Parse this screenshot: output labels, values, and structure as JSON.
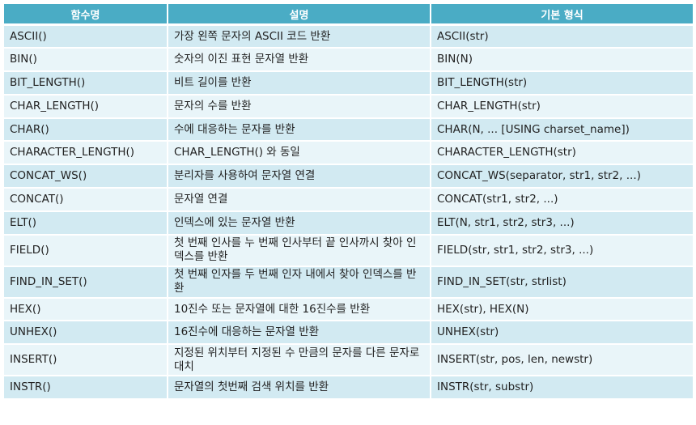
{
  "headers": [
    "함수명",
    "설명",
    "기본 형식"
  ],
  "rows": [
    {
      "name": "ASCII()",
      "description": "가장 왼쪽 문자의 ASCII 코드 반환",
      "syntax": "ASCII(str)"
    },
    {
      "name": "BIN()",
      "description": "숫자의 이진 표현 문자열 반환",
      "syntax": "BIN(N)"
    },
    {
      "name": "BIT_LENGTH()",
      "description": "비트 길이를 반환",
      "syntax": "BIT_LENGTH(str)"
    },
    {
      "name": "CHAR_LENGTH()",
      "description": "문자의 수를 반환",
      "syntax": "CHAR_LENGTH(str)"
    },
    {
      "name": "CHAR()",
      "description": "수에 대응하는 문자를 반환",
      "syntax": "CHAR(N, ... [USING charset_name])"
    },
    {
      "name": "CHARACTER_LENGTH()",
      "description": "CHAR_LENGTH() 와 동일",
      "syntax": "CHARACTER_LENGTH(str)"
    },
    {
      "name": "CONCAT_WS()",
      "description": "분리자를 사용하여 문자열 연결",
      "syntax": "CONCAT_WS(separator, str1, str2, ...)"
    },
    {
      "name": "CONCAT()",
      "description": "문자열 연결",
      "syntax": "CONCAT(str1, str2, ...)"
    },
    {
      "name": "ELT()",
      "description": "인덱스에 있는 문자열 반환",
      "syntax": "ELT(N, str1, str2, str3, ...)"
    },
    {
      "name": "FIELD()",
      "description": "첫 번째 인사를 누 번째 인사부터 끝 인사까시 찾아 인덱스를 반환",
      "syntax": "FIELD(str, str1, str2, str3, ...)"
    },
    {
      "name": "FIND_IN_SET()",
      "description": "첫 번째 인자를 두 번째 인자 내에서 찾아 인덱스를 반환",
      "syntax": "FIND_IN_SET(str, strlist)"
    },
    {
      "name": "HEX()",
      "description": "10진수 또는 문자열에 대한 16진수를 반환",
      "syntax": "HEX(str), HEX(N)"
    },
    {
      "name": "UNHEX()",
      "description": "16진수에 대응하는 문자열 반환",
      "syntax": "UNHEX(str)"
    },
    {
      "name": "INSERT()",
      "description": "지정된 위치부터 지정된 수 만큼의 문자를 다른 문자로 대치",
      "syntax": "INSERT(str, pos, len, newstr)"
    },
    {
      "name": "INSTR()",
      "description": "문자열의 첫번째 검색 위치를 반환",
      "syntax": "INSTR(str, substr)"
    }
  ]
}
